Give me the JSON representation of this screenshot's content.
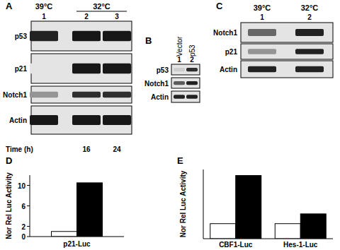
{
  "blots": [
    {
      "panel": "A",
      "groups": [
        {
          "label": "39°C",
          "lanes": [
            0
          ]
        },
        {
          "label": "32°C",
          "lanes": [
            1,
            2
          ]
        }
      ],
      "lanes": [
        "1",
        "2",
        "3"
      ],
      "rows": [
        {
          "name": "p53",
          "intensity": [
            0.85,
            0.9,
            0.9
          ]
        },
        {
          "name": "p21",
          "intensity": [
            0,
            0.9,
            0.9
          ]
        },
        {
          "name": "Notch1",
          "intensity": [
            0.35,
            0.8,
            0.8
          ]
        },
        {
          "name": "Actin",
          "intensity": [
            0.9,
            0.9,
            0.9
          ]
        }
      ],
      "footer": {
        "label": "Time (h)",
        "values": [
          null,
          16,
          24
        ]
      }
    },
    {
      "panel": "B",
      "groups": [
        {
          "label": "Vector",
          "lanes": [
            0
          ]
        },
        {
          "label": "p53",
          "lanes": [
            1
          ]
        }
      ],
      "lanes": [
        "1",
        "2"
      ],
      "rows": [
        {
          "name": "p53",
          "intensity": [
            0.1,
            0.8
          ]
        },
        {
          "name": "Notch1",
          "intensity": [
            0.6,
            0.85
          ]
        },
        {
          "name": "Actin",
          "intensity": [
            0.85,
            0.85
          ]
        }
      ]
    },
    {
      "panel": "C",
      "groups": [
        {
          "label": "39°C",
          "lanes": [
            0
          ]
        },
        {
          "label": "32°C",
          "lanes": [
            1
          ]
        }
      ],
      "lanes": [
        "1",
        "2"
      ],
      "rows": [
        {
          "name": "Notch1",
          "intensity": [
            0.55,
            0.85
          ]
        },
        {
          "name": "p21",
          "intensity": [
            0.35,
            0.85
          ]
        },
        {
          "name": "Actin",
          "intensity": [
            0.85,
            0.85
          ]
        }
      ]
    }
  ],
  "chart_data": [
    {
      "type": "bar",
      "title": "D",
      "y_label": "Nor Rel Luc Activity",
      "categories": [
        "p21-Luc"
      ],
      "series": [
        {
          "color": "#ffffff",
          "values": [
            1
          ]
        },
        {
          "color": "#000000",
          "values": [
            10.5
          ]
        }
      ],
      "ylim": [
        0,
        12
      ],
      "yticks": [
        0,
        2,
        6,
        10
      ]
    },
    {
      "type": "bar",
      "title": "E",
      "y_label": "Nor Rel Luc Activity",
      "categories": [
        "CBF1-Luc",
        "Hes-1-Luc"
      ],
      "series": [
        {
          "color": "#ffffff",
          "values": [
            1,
            1
          ]
        },
        {
          "color": "#000000",
          "values": [
            4.2,
            1.65
          ]
        }
      ],
      "ylim": [
        0,
        4.6
      ],
      "tick_labels": "x"
    }
  ]
}
